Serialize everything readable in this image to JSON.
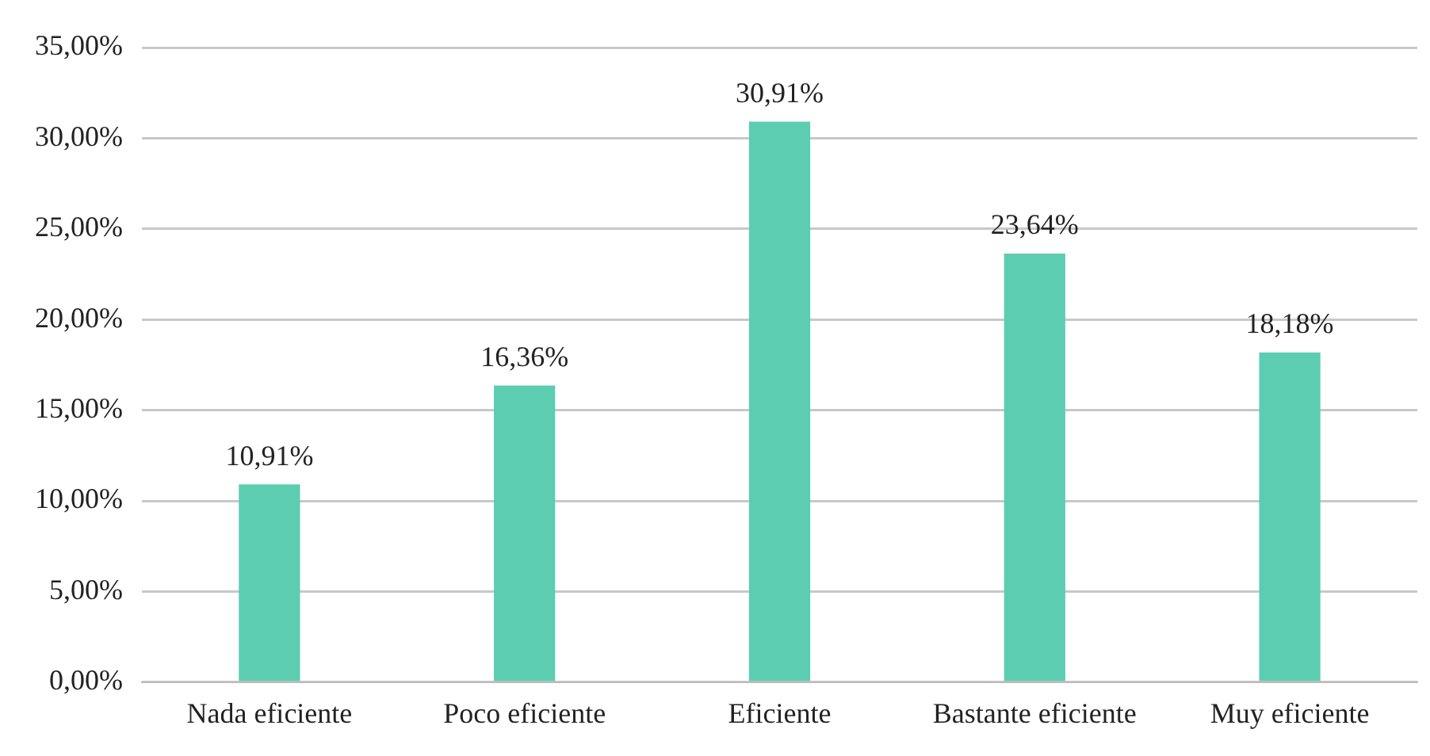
{
  "chart_data": {
    "type": "bar",
    "categories": [
      "Nada eficiente",
      "Poco eficiente",
      "Eficiente",
      "Bastante eficiente",
      "Muy eficiente"
    ],
    "values": [
      10.91,
      16.36,
      30.91,
      23.64,
      18.18
    ],
    "value_labels": [
      "10,91%",
      "16,36%",
      "30,91%",
      "23,64%",
      "18,18%"
    ],
    "color": "#5ccdb0",
    "ylim": [
      0,
      35
    ],
    "yticks": [
      {
        "value": 0,
        "label": "0,00%"
      },
      {
        "value": 5,
        "label": "5,00%"
      },
      {
        "value": 10,
        "label": "10,00%"
      },
      {
        "value": 15,
        "label": "15,00%"
      },
      {
        "value": 20,
        "label": "20,00%"
      },
      {
        "value": 25,
        "label": "25,00%"
      },
      {
        "value": 30,
        "label": "30,00%"
      },
      {
        "value": 35,
        "label": "35,00%"
      }
    ],
    "grid": "y",
    "legend": false
  }
}
